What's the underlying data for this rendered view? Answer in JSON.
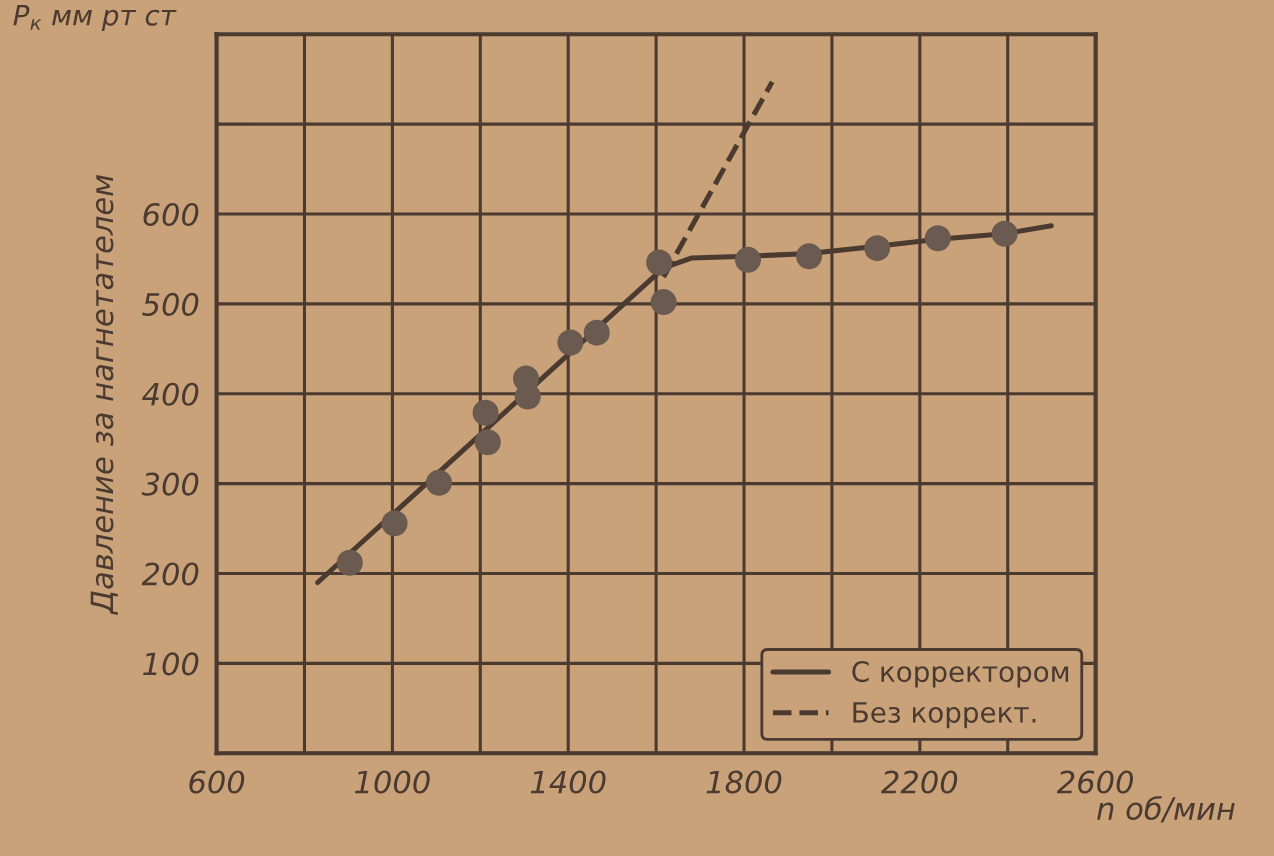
{
  "chart_data": {
    "type": "line",
    "xlabel": "n об/мин",
    "ylabel": "Давление за нагнетателем",
    "annotations": [
      "P$_{к}$ мм рт ст"
    ],
    "xlim": [
      600,
      2600
    ],
    "ylim": [
      0,
      800
    ],
    "xticks": [
      600,
      {
        "value": 800,
        "label": null
      },
      1000,
      {
        "value": 1200,
        "label": null
      },
      1400,
      {
        "value": 1600,
        "label": null
      },
      1800,
      {
        "value": 2000,
        "label": null
      },
      2200,
      {
        "value": 2400,
        "label": null
      },
      2600
    ],
    "yticks": [
      {
        "value": 0,
        "label": null
      },
      100,
      200,
      300,
      400,
      500,
      600,
      {
        "value": 700,
        "label": null
      },
      {
        "value": 800,
        "label": null
      }
    ],
    "grid": true,
    "legend": "bottom right",
    "series": [
      {
        "name": "С корректором",
        "line_style": "solid",
        "color": "#4a3a30",
        "x": [
          830,
          1617,
          1680,
          1809,
          1948,
          2103,
          2241,
          2393,
          2499
        ],
        "values": [
          190,
          540,
          551,
          553,
          556,
          564,
          572,
          578,
          587
        ]
      },
      {
        "name": "Без коррект.",
        "line_style": "dashed",
        "color": "#4a3a30",
        "x": [
          1617,
          1864
        ],
        "values": [
          530,
          747
        ]
      },
      {
        "type": "scatter",
        "marker": "circle",
        "color": "#6a5a50",
        "x": [
          903,
          1005,
          1106,
          1212,
          1217,
          1304,
          1308,
          1405,
          1465,
          1607,
          1617,
          1809,
          1948,
          2103,
          2241,
          2393
        ],
        "values": [
          212,
          256,
          301,
          379,
          346,
          417,
          397,
          457,
          468,
          546,
          502,
          549,
          553,
          562,
          573,
          578
        ]
      }
    ]
  }
}
